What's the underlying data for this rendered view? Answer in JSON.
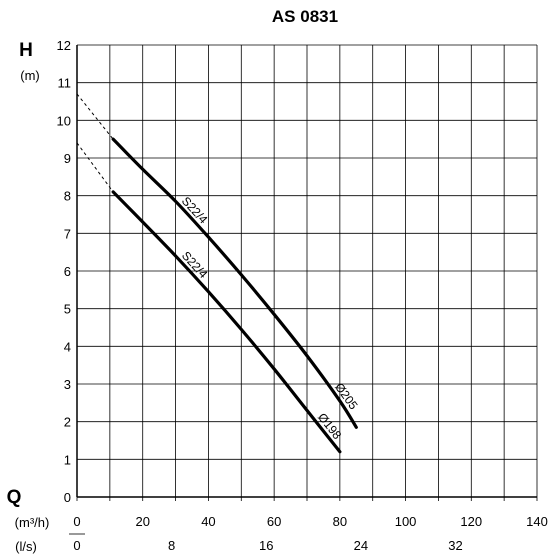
{
  "chart_data": {
    "type": "line",
    "title": "AS 0831",
    "y_symbol": "H",
    "y_unit": "(m)",
    "x_symbol": "Q",
    "x_unit_primary": "(m³/h)",
    "x_unit_secondary": "(l/s)",
    "xlim": [
      0,
      140
    ],
    "ylim": [
      0,
      12
    ],
    "x_grid_step": 10,
    "y_grid_step": 1,
    "grid": true,
    "x_ticks_primary": [
      "0",
      "20",
      "40",
      "60",
      "80",
      "100",
      "120",
      "140"
    ],
    "x_tick_values_primary": [
      0,
      20,
      40,
      60,
      80,
      100,
      120,
      140
    ],
    "x_ticks_secondary": [
      "0",
      "8",
      "16",
      "24",
      "32"
    ],
    "x_tick_values_secondary_mh": [
      0,
      28.8,
      57.6,
      86.4,
      115.2
    ],
    "y_ticks": [
      "0",
      "1",
      "2",
      "3",
      "4",
      "5",
      "6",
      "7",
      "8",
      "9",
      "10",
      "11",
      "12"
    ],
    "series": [
      {
        "name": "S22/4 Ø205",
        "model": "S22/4",
        "diameter": "Ø205",
        "x": [
          11,
          20,
          30,
          40,
          50,
          60,
          70,
          80,
          85
        ],
        "y": [
          9.5,
          8.7,
          7.85,
          6.9,
          5.9,
          4.85,
          3.75,
          2.55,
          1.85
        ],
        "extrapolation_to": [
          0,
          10.7
        ]
      },
      {
        "name": "S22/4 Ø198",
        "model": "S22/4",
        "diameter": "Ø198",
        "x": [
          11,
          20,
          30,
          40,
          50,
          60,
          70,
          80
        ],
        "y": [
          8.1,
          7.3,
          6.4,
          5.45,
          4.45,
          3.4,
          2.3,
          1.2
        ],
        "extrapolation_to": [
          0,
          9.4
        ]
      }
    ]
  }
}
